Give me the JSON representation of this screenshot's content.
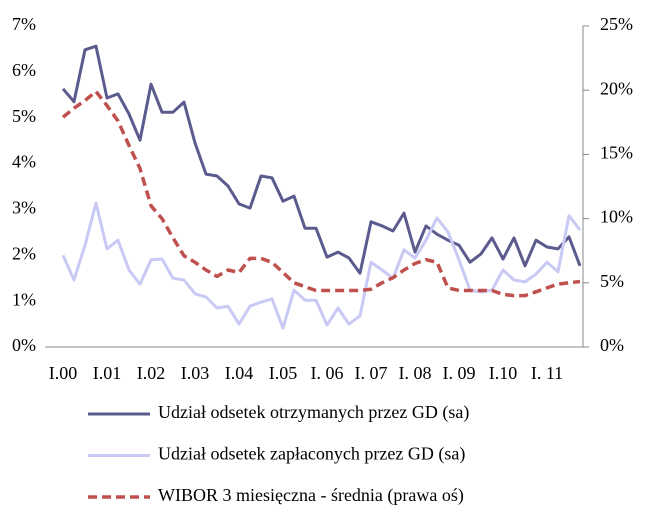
{
  "chart_data": {
    "type": "line",
    "legend": "bottom",
    "categories": [
      "I.00",
      null,
      null,
      null,
      "I.01",
      null,
      null,
      null,
      "I.02",
      null,
      null,
      null,
      "I.03",
      null,
      null,
      null,
      "I.04",
      null,
      null,
      null,
      "I.05",
      null,
      null,
      null,
      "I. 06",
      null,
      null,
      null,
      "I. 07",
      null,
      null,
      null,
      "I. 08",
      null,
      null,
      null,
      "I. 09",
      null,
      null,
      null,
      "I.10",
      null,
      null,
      null,
      "I. 11",
      null,
      null,
      null
    ],
    "ylim": [
      0,
      7
    ],
    "yticks": [
      {
        "value": 0,
        "label": "0%"
      },
      {
        "value": 1,
        "label": "1%"
      },
      {
        "value": 2,
        "label": "2%"
      },
      {
        "value": 3,
        "label": "3%"
      },
      {
        "value": 4,
        "label": "4%"
      },
      {
        "value": 5,
        "label": "5%"
      },
      {
        "value": 6,
        "label": "6%"
      },
      {
        "value": 7,
        "label": "7%"
      }
    ],
    "y2lim": [
      0,
      25
    ],
    "y2ticks": [
      {
        "value": 0,
        "label": "0%"
      },
      {
        "value": 5,
        "label": "5%"
      },
      {
        "value": 10,
        "label": "10%"
      },
      {
        "value": 15,
        "label": "15%"
      },
      {
        "value": 20,
        "label": "20%"
      },
      {
        "value": 25,
        "label": "25%"
      }
    ],
    "series": [
      {
        "name": "Udział odsetek otrzymanych przez GD (sa)",
        "color": "#5b5b8e",
        "line_style": "solid",
        "values": [
          5.63,
          5.35,
          6.48,
          6.56,
          5.43,
          5.52,
          5.08,
          4.51,
          5.73,
          5.12,
          5.12,
          5.34,
          4.45,
          3.77,
          3.73,
          3.51,
          3.12,
          3.03,
          3.73,
          3.69,
          3.18,
          3.29,
          2.59,
          2.59,
          1.96,
          2.07,
          1.94,
          1.61,
          2.73,
          2.64,
          2.53,
          2.92,
          2.07,
          2.64,
          2.46,
          2.33,
          2.22,
          1.85,
          2.03,
          2.38,
          1.92,
          2.38,
          1.77,
          2.33,
          2.18,
          2.14,
          2.4,
          1.77
        ]
      },
      {
        "name": "Udział odsetek zapłaconych przez GD (sa)",
        "color": "#c9c9f5",
        "line_style": "solid",
        "values": [
          2.0,
          1.46,
          2.22,
          3.14,
          2.14,
          2.33,
          1.68,
          1.37,
          1.9,
          1.92,
          1.5,
          1.46,
          1.16,
          1.09,
          0.85,
          0.89,
          0.5,
          0.89,
          0.98,
          1.05,
          0.41,
          1.24,
          1.02,
          1.02,
          0.48,
          0.85,
          0.5,
          0.68,
          1.85,
          1.68,
          1.5,
          2.12,
          1.94,
          2.33,
          2.81,
          2.51,
          1.9,
          1.24,
          1.2,
          1.24,
          1.68,
          1.46,
          1.42,
          1.59,
          1.85,
          1.64,
          2.86,
          2.55
        ]
      },
      {
        "name": "WIBOR 3 miesięczna - średnia (prawa oś)",
        "color": "#c0504d",
        "line_style": "dashed",
        "axis": "y2",
        "values": [
          17.9,
          18.6,
          19.2,
          19.9,
          18.8,
          17.6,
          15.7,
          13.9,
          11.0,
          10.0,
          8.5,
          7.1,
          6.6,
          6.0,
          5.5,
          6.0,
          5.8,
          6.9,
          6.9,
          6.6,
          5.8,
          5.0,
          4.7,
          4.4,
          4.4,
          4.4,
          4.4,
          4.4,
          4.5,
          5.0,
          5.4,
          6.0,
          6.5,
          6.8,
          6.6,
          4.6,
          4.4,
          4.4,
          4.4,
          4.4,
          4.1,
          4.0,
          4.0,
          4.3,
          4.6,
          4.9,
          5.0,
          5.1
        ]
      }
    ]
  }
}
